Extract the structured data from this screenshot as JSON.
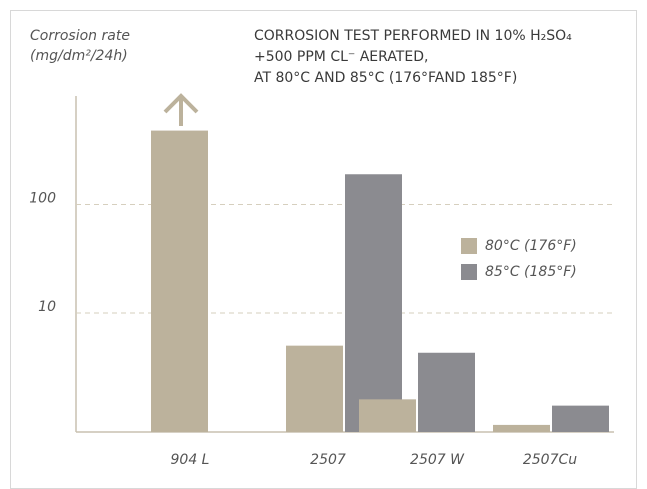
{
  "chart_data": {
    "type": "bar",
    "title_lines": [
      "CORROSION TEST PERFORMED IN 10% H₂SO₄",
      "+500 PPM CL⁻ AERATED,",
      "AT 80°C AND 85°C (176°FAND 185°F)"
    ],
    "y_label_lines": [
      "Corrosion rate",
      "(mg/dm²/24h)"
    ],
    "categories": [
      "904 L",
      "2507",
      "2507 W",
      "2507Cu"
    ],
    "series": [
      {
        "name": "80°C (176°F)",
        "color": "#bcb29c",
        "values": [
          480,
          5,
          1.6,
          0.93
        ]
      },
      {
        "name": "85°C (185°F)",
        "color": "#8b8b90",
        "values": [
          null,
          190,
          4.3,
          1.4
        ]
      }
    ],
    "ylim": [
      0.8,
      1000
    ],
    "yticks": [
      10,
      100
    ],
    "log_scale": true,
    "grid": true,
    "legend": "right"
  }
}
